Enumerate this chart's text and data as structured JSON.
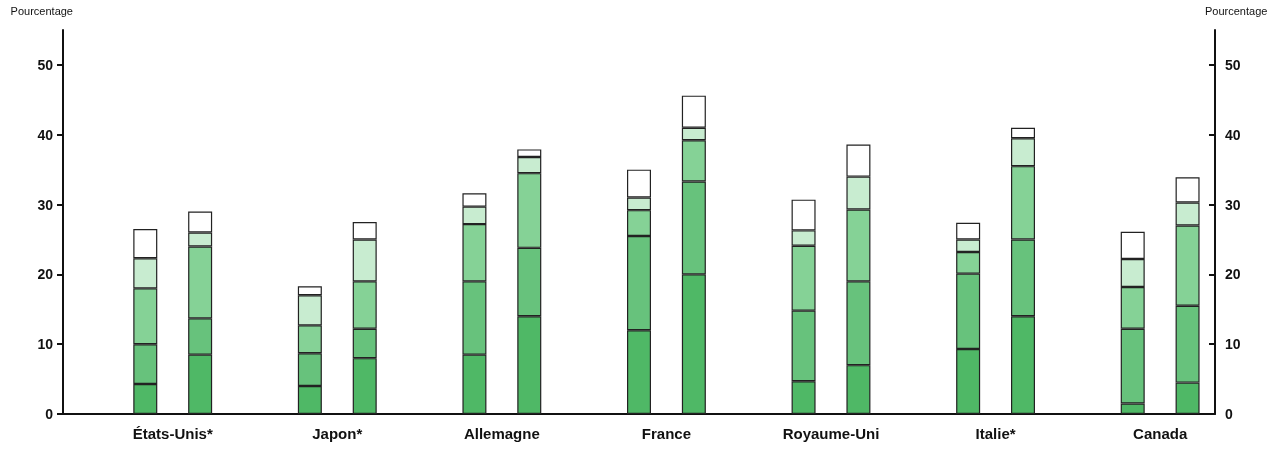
{
  "chart_data": {
    "type": "bar",
    "stacked": true,
    "ylabel": "Pourcentage",
    "y2label": "Pourcentage",
    "categories": [
      null,
      "États-Unis*",
      null,
      null,
      "Japon*",
      null,
      null,
      "Allemagne",
      null,
      null,
      "France",
      null,
      null,
      "Royaume-Uni",
      null,
      null,
      "Italie*",
      null,
      null,
      "Canada",
      null
    ],
    "ylim": [
      0,
      55
    ],
    "yticks": [
      0,
      10,
      20,
      30,
      40,
      50
    ],
    "y2lim": [
      0,
      55
    ],
    "y2ticks": [
      0,
      10,
      20,
      30,
      40,
      50
    ],
    "grid": false,
    "series": [
      {
        "color": "#4fb866",
        "values": [
          null,
          4.3,
          8.5,
          null,
          4,
          8,
          null,
          8.5,
          14,
          null,
          12,
          20,
          null,
          4.7,
          7,
          null,
          9.3,
          14,
          null,
          1.5,
          4.5
        ]
      },
      {
        "color": "#67c27c",
        "values": [
          null,
          5.7,
          5.2,
          null,
          4.7,
          4.2,
          null,
          10.5,
          9.8,
          null,
          13.5,
          13.3,
          null,
          10.1,
          12,
          null,
          10.8,
          11,
          null,
          10.7,
          11
        ]
      },
      {
        "color": "#85d296",
        "values": [
          null,
          8,
          10.3,
          null,
          4,
          6.8,
          null,
          8.2,
          10.7,
          null,
          3.7,
          5.9,
          null,
          9.3,
          10.3,
          null,
          3.1,
          10.5,
          null,
          6,
          11.5
        ]
      },
      {
        "color": "#c8ecd0",
        "values": [
          null,
          4.3,
          2,
          null,
          4.3,
          6,
          null,
          2.5,
          2.3,
          null,
          1.8,
          1.8,
          null,
          2.2,
          4.7,
          null,
          1.8,
          4,
          null,
          4,
          3.3
        ]
      },
      {
        "color": "#ffffff",
        "values": [
          null,
          4.2,
          3,
          null,
          1.3,
          2.5,
          null,
          1.9,
          1.1,
          null,
          4,
          4.6,
          null,
          4.4,
          4.6,
          null,
          2.4,
          1.5,
          null,
          3.9,
          3.6
        ]
      }
    ]
  }
}
